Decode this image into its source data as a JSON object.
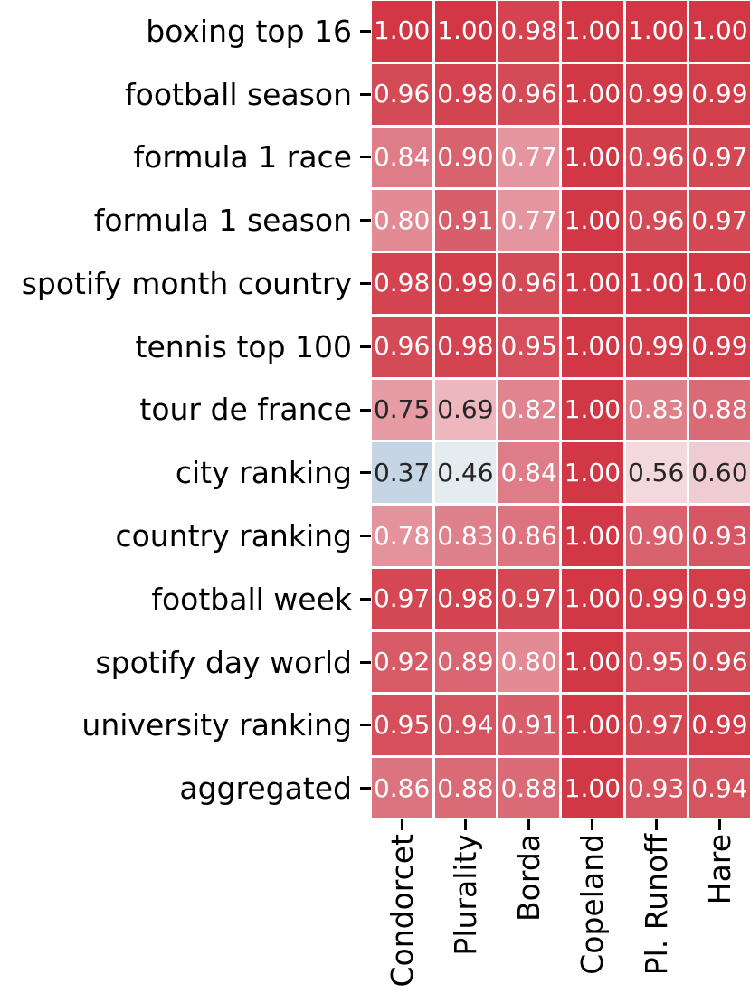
{
  "figure": {
    "background": "#ffffff",
    "grid_line_color": "#ffffff",
    "tick_color": "#000000",
    "axis_label_color": "#000000"
  },
  "chart_data": {
    "type": "heatmap",
    "title": "",
    "xlabel": "",
    "ylabel": "",
    "legend": "none",
    "columns": [
      "Condorcet",
      "Plurality",
      "Borda",
      "Copeland",
      "Pl. Runoff",
      "Hare"
    ],
    "rows": [
      "boxing top 16",
      "football season",
      "formula 1 race",
      "formula 1 season",
      "spotify month country",
      "tennis top 100",
      "tour de france",
      "city ranking",
      "country ranking",
      "football week",
      "spotify day world",
      "university ranking",
      "aggregated"
    ],
    "values": [
      [
        1.0,
        1.0,
        0.98,
        1.0,
        1.0,
        1.0
      ],
      [
        0.96,
        0.98,
        0.96,
        1.0,
        0.99,
        0.99
      ],
      [
        0.84,
        0.9,
        0.77,
        1.0,
        0.96,
        0.97
      ],
      [
        0.8,
        0.91,
        0.77,
        1.0,
        0.96,
        0.97
      ],
      [
        0.98,
        0.99,
        0.96,
        1.0,
        1.0,
        1.0
      ],
      [
        0.96,
        0.98,
        0.95,
        1.0,
        0.99,
        0.99
      ],
      [
        0.75,
        0.69,
        0.82,
        1.0,
        0.83,
        0.88
      ],
      [
        0.37,
        0.46,
        0.84,
        1.0,
        0.56,
        0.6
      ],
      [
        0.78,
        0.83,
        0.86,
        1.0,
        0.9,
        0.93
      ],
      [
        0.97,
        0.98,
        0.97,
        1.0,
        0.99,
        0.99
      ],
      [
        0.92,
        0.89,
        0.8,
        1.0,
        0.95,
        0.96
      ],
      [
        0.95,
        0.94,
        0.91,
        1.0,
        0.97,
        0.99
      ],
      [
        0.86,
        0.88,
        0.88,
        1.0,
        0.93,
        0.94
      ]
    ],
    "value_decimals": 2,
    "value_range": [
      0,
      1
    ],
    "colormap": {
      "style": "diverging blue-white-red",
      "anchors": [
        [
          0.37,
          "#c5d5e3"
        ],
        [
          0.46,
          "#e5ecf0"
        ],
        [
          0.5,
          "#f2e6e8"
        ],
        [
          0.56,
          "#f3d9dd"
        ],
        [
          0.6,
          "#efccd2"
        ],
        [
          0.69,
          "#edb7bd"
        ],
        [
          0.75,
          "#e79ca5"
        ],
        [
          0.8,
          "#e28b95"
        ],
        [
          0.84,
          "#de7d88"
        ],
        [
          0.88,
          "#da6a76"
        ],
        [
          0.92,
          "#d75a67"
        ],
        [
          0.96,
          "#d44b58"
        ],
        [
          0.98,
          "#d34450"
        ],
        [
          1.0,
          "#d23745"
        ]
      ]
    },
    "annotation_text_light": "#ffffff",
    "annotation_text_dark": "#262626",
    "dark_text_max_value": 0.75
  }
}
